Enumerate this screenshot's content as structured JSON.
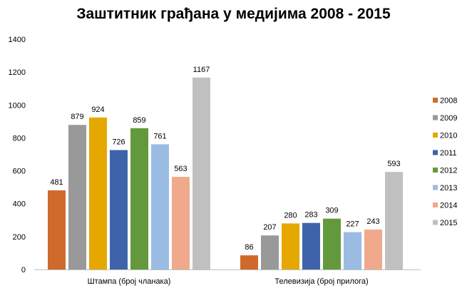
{
  "chart_data": {
    "type": "bar",
    "title": "Заштитник грађана у медијима 2008 - 2015",
    "categories": [
      "Штампа (број чланака)",
      "Телевизија (број прилога)"
    ],
    "series": [
      {
        "name": "2008",
        "color": "#D06A2C",
        "values": [
          481,
          86
        ]
      },
      {
        "name": "2009",
        "color": "#999999",
        "values": [
          879,
          207
        ]
      },
      {
        "name": "2010",
        "color": "#E4A800",
        "values": [
          924,
          280
        ]
      },
      {
        "name": "2011",
        "color": "#3F63AA",
        "values": [
          726,
          283
        ]
      },
      {
        "name": "2012",
        "color": "#63993C",
        "values": [
          859,
          309
        ]
      },
      {
        "name": "2013",
        "color": "#9BBCE2",
        "values": [
          761,
          227
        ]
      },
      {
        "name": "2014",
        "color": "#F1A98C",
        "values": [
          563,
          243
        ]
      },
      {
        "name": "2015",
        "color": "#C0C0C0",
        "values": [
          1167,
          593
        ]
      }
    ],
    "y_ticks": [
      "0",
      "200",
      "400",
      "600",
      "800",
      "1000",
      "1200",
      "1400"
    ],
    "ylim": [
      0,
      1400
    ],
    "grid": false,
    "legend": "right",
    "data_labels": true
  }
}
